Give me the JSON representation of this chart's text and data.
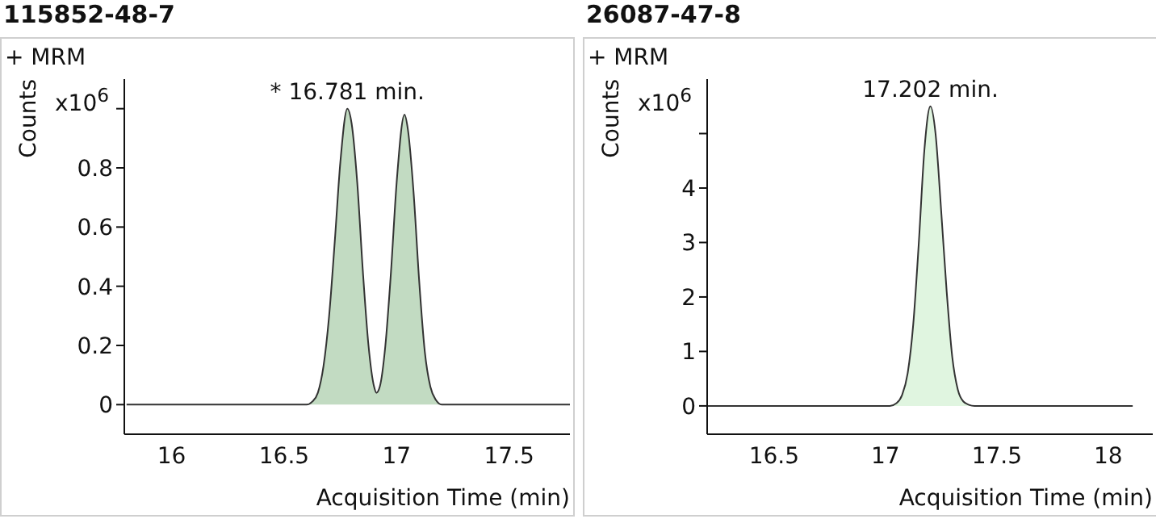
{
  "chart_data": [
    {
      "type": "area",
      "title": "115852-48-7",
      "xlabel": "Acquisition Time (min)",
      "ylabel": "Counts",
      "annotations": [
        "+ MRM",
        "x10$^{6}$",
        {
          "text": "* 16.781 min.",
          "x": 16.781,
          "y": 1.0
        }
      ],
      "x": [
        15.8,
        16.6,
        16.625,
        16.65,
        16.675,
        16.7,
        16.725,
        16.75,
        16.781,
        16.8,
        16.825,
        16.85,
        16.875,
        16.9,
        16.91,
        16.925,
        16.95,
        16.975,
        17.0,
        17.035,
        17.05,
        17.075,
        17.1,
        17.125,
        17.15,
        17.175,
        17.2,
        17.77
      ],
      "series": [
        {
          "color": "#c2dbc2",
          "values": [
            0,
            0,
            0.01,
            0.04,
            0.13,
            0.3,
            0.55,
            0.82,
            1.0,
            0.95,
            0.75,
            0.45,
            0.2,
            0.06,
            0.04,
            0.06,
            0.2,
            0.45,
            0.75,
            0.98,
            0.93,
            0.72,
            0.42,
            0.18,
            0.06,
            0.015,
            0,
            0
          ]
        }
      ],
      "xlim": [
        15.79,
        17.77
      ],
      "xticks": [
        16,
        16.5,
        17,
        17.5
      ],
      "ylim": [
        -0.1,
        1.1
      ],
      "yticks": [
        0,
        0.2,
        0.4,
        0.6,
        0.8,
        {
          "value": 1.0,
          "label": null
        }
      ]
    },
    {
      "type": "area",
      "title": "26087-47-8",
      "xlabel": "Acquisition Time (min)",
      "ylabel": "Counts",
      "annotations": [
        "+ MRM",
        "x10$^{6}$",
        {
          "text": "17.202 min.",
          "x": 17.202,
          "y": 5.5
        }
      ],
      "x": [
        16.2,
        17.02,
        17.05,
        17.075,
        17.1,
        17.125,
        17.15,
        17.175,
        17.202,
        17.225,
        17.25,
        17.275,
        17.3,
        17.325,
        17.35,
        17.375,
        17.4,
        18.11
      ],
      "series": [
        {
          "color": "#e0f5e0",
          "values": [
            0,
            0,
            0.05,
            0.2,
            0.6,
            1.5,
            3.0,
            4.7,
            5.5,
            5.0,
            3.6,
            2.1,
            0.9,
            0.3,
            0.08,
            0.02,
            0,
            0
          ]
        }
      ],
      "xlim": [
        16.2,
        18.2
      ],
      "xticks": [
        16.5,
        17,
        17.5,
        18
      ],
      "ylim": [
        -0.52,
        6.0
      ],
      "yticks": [
        0,
        1,
        2,
        3,
        4,
        {
          "value": 5,
          "label": null
        }
      ]
    }
  ]
}
